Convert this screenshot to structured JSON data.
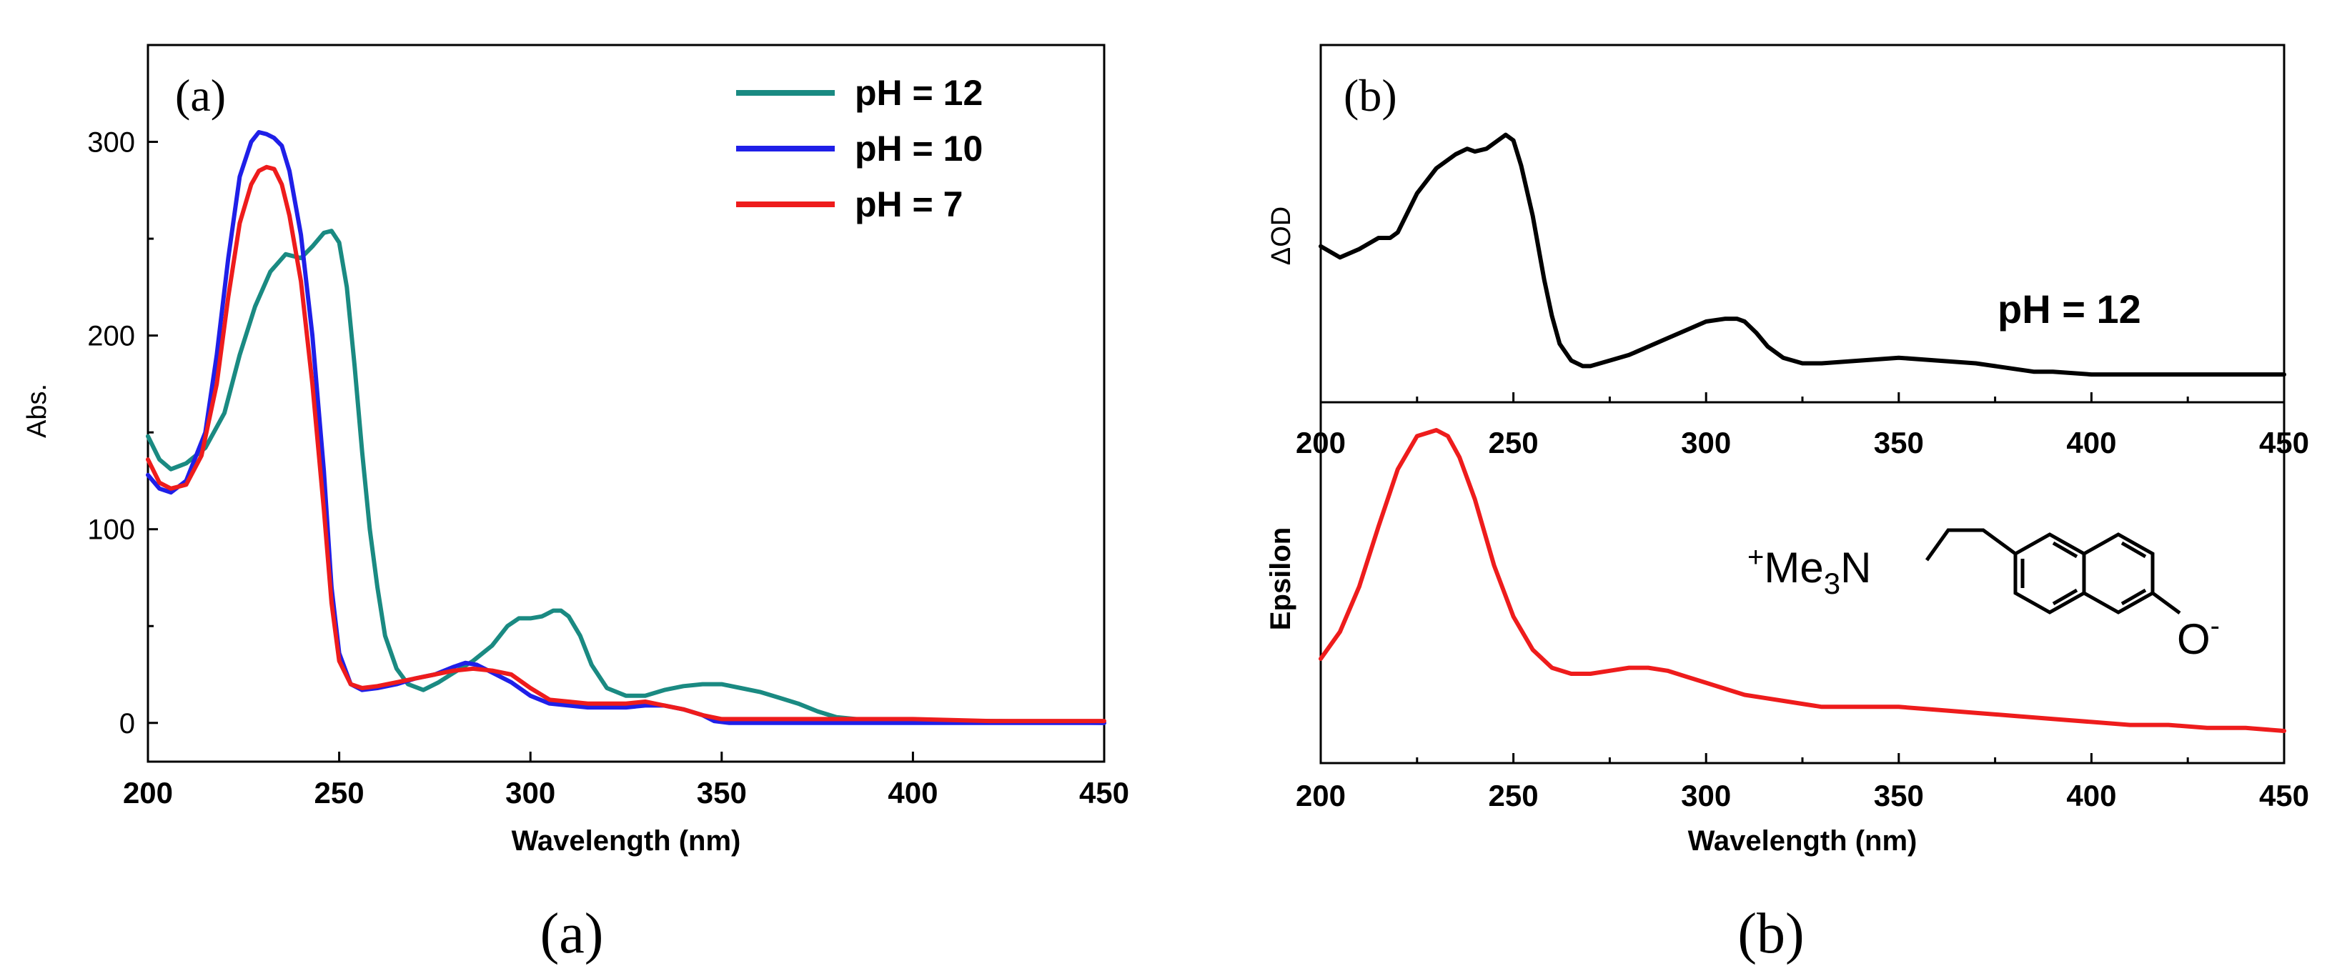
{
  "chart_data": [
    {
      "panel": "a",
      "type": "line",
      "panel_label": "(a)",
      "caption": "(a)",
      "xlabel": "Wavelength (nm)",
      "ylabel": "Abs.",
      "xlim": [
        200,
        450
      ],
      "ylim": [
        -20,
        350
      ],
      "xticks": [
        "200",
        "250",
        "300",
        "350",
        "400",
        "450"
      ],
      "yticks": [
        "0",
        "100",
        "200",
        "300"
      ],
      "legend_position": "top-right",
      "series": [
        {
          "name": "pH = 12",
          "color": "#1a8a82",
          "x": [
            200,
            203,
            206,
            210,
            215,
            220,
            224,
            228,
            232,
            236,
            240,
            243,
            246,
            248,
            250,
            252,
            254,
            256,
            258,
            260,
            262,
            265,
            268,
            272,
            276,
            280,
            285,
            290,
            294,
            297,
            300,
            303,
            306,
            308,
            310,
            313,
            316,
            320,
            325,
            330,
            335,
            340,
            345,
            350,
            355,
            360,
            365,
            370,
            375,
            380,
            385,
            390,
            400,
            420,
            450
          ],
          "y": [
            148,
            136,
            131,
            134,
            142,
            160,
            190,
            215,
            233,
            242,
            240,
            246,
            253,
            254,
            248,
            225,
            185,
            140,
            100,
            70,
            45,
            28,
            20,
            17,
            21,
            26,
            32,
            40,
            50,
            54,
            54,
            55,
            58,
            58,
            55,
            45,
            30,
            18,
            14,
            14,
            17,
            19,
            20,
            20,
            18,
            16,
            13,
            10,
            6,
            3,
            2,
            1,
            1,
            1,
            0
          ]
        },
        {
          "name": "pH = 10",
          "color": "#1f1fe8",
          "x": [
            200,
            203,
            206,
            210,
            215,
            218,
            221,
            224,
            227,
            229,
            231,
            233,
            235,
            237,
            240,
            243,
            246,
            248,
            250,
            253,
            256,
            260,
            265,
            270,
            275,
            280,
            283,
            286,
            290,
            295,
            300,
            305,
            310,
            315,
            320,
            325,
            330,
            335,
            340,
            345,
            348,
            352,
            360,
            380,
            400,
            450
          ],
          "y": [
            128,
            121,
            119,
            125,
            150,
            190,
            240,
            282,
            300,
            305,
            304,
            302,
            298,
            285,
            252,
            200,
            130,
            70,
            36,
            20,
            17,
            18,
            20,
            23,
            25,
            29,
            31,
            30,
            26,
            21,
            14,
            10,
            9,
            8,
            8,
            8,
            9,
            9,
            7,
            4,
            1,
            0,
            0,
            0,
            0,
            0
          ]
        },
        {
          "name": "pH = 7",
          "color": "#ee1c1c",
          "x": [
            200,
            203,
            206,
            210,
            214,
            218,
            221,
            224,
            227,
            229,
            231,
            233,
            235,
            237,
            240,
            243,
            246,
            248,
            250,
            253,
            256,
            260,
            265,
            270,
            275,
            280,
            285,
            290,
            295,
            300,
            305,
            310,
            315,
            320,
            325,
            330,
            335,
            340,
            345,
            350,
            360,
            380,
            400,
            420,
            450
          ],
          "y": [
            136,
            124,
            121,
            123,
            138,
            175,
            220,
            258,
            278,
            285,
            287,
            286,
            278,
            262,
            228,
            175,
            110,
            62,
            32,
            20,
            18,
            19,
            21,
            23,
            25,
            27,
            28,
            27,
            25,
            18,
            12,
            11,
            10,
            10,
            10,
            11,
            9,
            7,
            4,
            2,
            2,
            2,
            2,
            1,
            1
          ]
        }
      ]
    },
    {
      "panel": "b-top",
      "type": "line",
      "panel_label": "(b)",
      "caption": "(b)",
      "xlabel": "",
      "ylabel": "ΔOD",
      "annotation": "pH = 12",
      "xlim": [
        200,
        450
      ],
      "ylim": [
        0,
        1
      ],
      "xticks": [
        "200",
        "250",
        "300",
        "350",
        "400",
        "450"
      ],
      "series": [
        {
          "name": "ΔOD pH = 12",
          "color": "#000000",
          "x": [
            200,
            205,
            210,
            215,
            218,
            220,
            225,
            230,
            235,
            238,
            240,
            243,
            246,
            248,
            250,
            252,
            255,
            258,
            260,
            262,
            265,
            268,
            270,
            275,
            280,
            285,
            290,
            295,
            300,
            305,
            308,
            310,
            313,
            316,
            320,
            325,
            330,
            340,
            350,
            360,
            370,
            375,
            380,
            385,
            390,
            400,
            420,
            450
          ],
          "y": [
            0.47,
            0.43,
            0.46,
            0.5,
            0.5,
            0.52,
            0.66,
            0.75,
            0.8,
            0.82,
            0.81,
            0.82,
            0.85,
            0.87,
            0.85,
            0.76,
            0.58,
            0.35,
            0.22,
            0.12,
            0.06,
            0.04,
            0.04,
            0.06,
            0.08,
            0.11,
            0.14,
            0.17,
            0.2,
            0.21,
            0.21,
            0.2,
            0.16,
            0.11,
            0.07,
            0.05,
            0.05,
            0.06,
            0.07,
            0.06,
            0.05,
            0.04,
            0.03,
            0.02,
            0.02,
            0.01,
            0.01,
            0.01
          ]
        }
      ]
    },
    {
      "panel": "b-bottom",
      "type": "line",
      "xlabel": "Wavelength (nm)",
      "ylabel": "Epsilon",
      "xlim": [
        200,
        450
      ],
      "ylim": [
        0,
        1
      ],
      "xticks": [
        "200",
        "250",
        "300",
        "350",
        "400",
        "450"
      ],
      "structure_label": "⁺Me₃N ... O⁻ naphthalene",
      "series": [
        {
          "name": "Epsilon",
          "color": "#ee1c1c",
          "x": [
            200,
            205,
            210,
            215,
            220,
            225,
            230,
            233,
            236,
            240,
            245,
            250,
            255,
            260,
            265,
            270,
            275,
            280,
            285,
            290,
            295,
            300,
            305,
            310,
            315,
            320,
            325,
            330,
            340,
            350,
            360,
            370,
            380,
            390,
            400,
            410,
            420,
            430,
            440,
            450
          ],
          "y": [
            0.24,
            0.33,
            0.48,
            0.68,
            0.87,
            0.98,
            1.0,
            0.98,
            0.91,
            0.77,
            0.55,
            0.38,
            0.27,
            0.21,
            0.19,
            0.19,
            0.2,
            0.21,
            0.21,
            0.2,
            0.18,
            0.16,
            0.14,
            0.12,
            0.11,
            0.1,
            0.09,
            0.08,
            0.08,
            0.08,
            0.07,
            0.06,
            0.05,
            0.04,
            0.03,
            0.02,
            0.02,
            0.01,
            0.01,
            0.0
          ]
        }
      ]
    }
  ]
}
